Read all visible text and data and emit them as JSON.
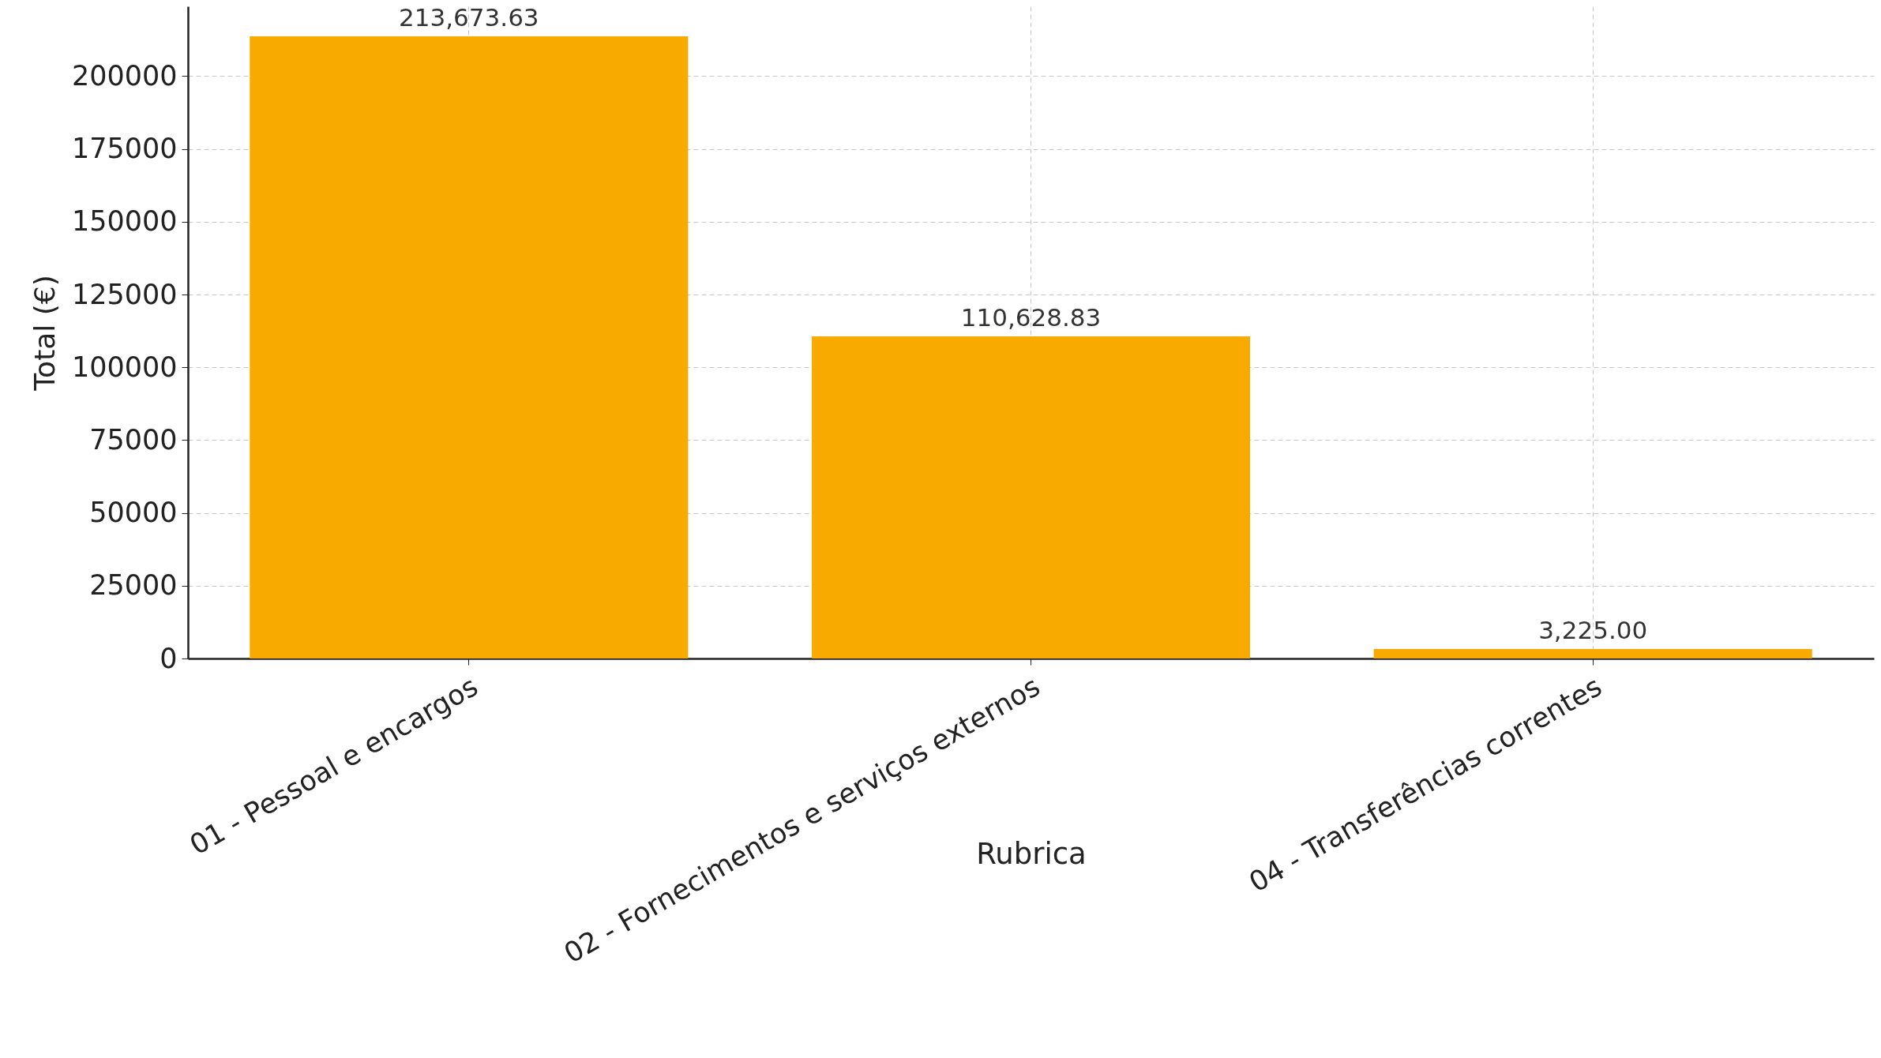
{
  "chart_data": {
    "type": "bar",
    "xlabel": "Rubrica",
    "ylabel": "Total (€)",
    "categories": [
      "01 - Pessoal e encargos",
      "02 - Fornecimentos e serviços externos",
      "04 - Transferências correntes"
    ],
    "values": [
      213673.63,
      110628.83,
      3225.0
    ],
    "value_labels": [
      "213,673.63",
      "110,628.83",
      "3,225.00"
    ],
    "color": "#f9aa00",
    "ylim": [
      0,
      224000
    ],
    "yticks": [
      0,
      25000,
      50000,
      75000,
      100000,
      125000,
      150000,
      175000,
      200000
    ],
    "grid": true
  }
}
